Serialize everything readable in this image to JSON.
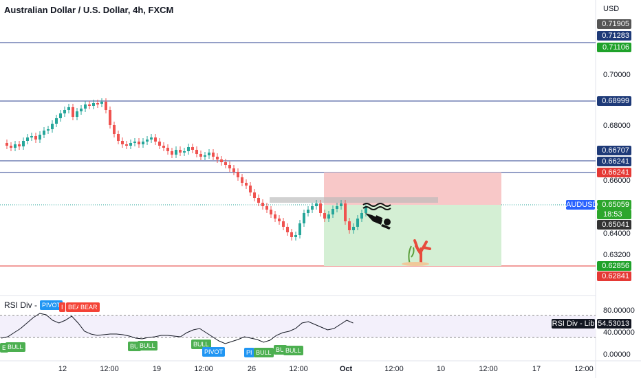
{
  "title": "Australian Dollar / U.S. Dollar, 4h, FXCM",
  "currency": "USD",
  "symbol": "AUDUSD",
  "price_axis": {
    "ticks": [
      "0.70000",
      "0.68000",
      "0.66000",
      "0.64000",
      "0.63200"
    ],
    "tags": [
      {
        "text": "0.71905",
        "color": "#555555"
      },
      {
        "text": "0.71283",
        "color": "#1e3a78"
      },
      {
        "text": "0.71106",
        "color": "#1fa22a"
      },
      {
        "text": "0.68999",
        "color": "#1e3a78"
      },
      {
        "text": "0.66707",
        "color": "#1e3a78"
      },
      {
        "text": "0.66241",
        "color": "#1e3a78"
      },
      {
        "text": "0.66241",
        "color": "#e53935"
      },
      {
        "text": "0.65059",
        "color": "#2ca62c"
      },
      {
        "text": "18:53",
        "color": "#2ca62c"
      },
      {
        "text": "0.65041",
        "color": "#333333"
      },
      {
        "text": "0.62856",
        "color": "#1fa22a"
      },
      {
        "text": "0.62841",
        "color": "#e53935"
      }
    ]
  },
  "rsi": {
    "title": "RSI Div - Lib",
    "tag_label": "RSI Div - Lib",
    "value": "54.53013",
    "ticks": [
      "80.00000",
      "40.00000",
      "0.00000"
    ],
    "badges": [
      {
        "text": "PIVOT",
        "color": "blue"
      },
      {
        "text": "I",
        "color": "red"
      },
      {
        "text": "BEA",
        "color": "red"
      },
      {
        "text": "BEAR",
        "color": "red"
      },
      {
        "text": "E",
        "color": "green"
      },
      {
        "text": "BULL",
        "color": "green"
      },
      {
        "text": "BU",
        "color": "green"
      },
      {
        "text": "BULL",
        "color": "green"
      },
      {
        "text": "BULL",
        "color": "green"
      },
      {
        "text": "PIVOT",
        "color": "blue"
      },
      {
        "text": "PI",
        "color": "blue"
      },
      {
        "text": "BULL",
        "color": "green"
      },
      {
        "text": "BU",
        "color": "green"
      },
      {
        "text": "BULL",
        "color": "green"
      }
    ]
  },
  "time_axis": [
    "12",
    "12:00",
    "19",
    "12:00",
    "26",
    "12:00",
    "Oct",
    "12:00",
    "10",
    "12:00",
    "17",
    "12:00"
  ],
  "colors": {
    "up": "#26a69a",
    "down": "#ef5350",
    "hline": "#2a3f8f",
    "stop_zone": "#f8c8c8",
    "target_zone": "#d4efd4"
  },
  "icons": [
    "diver-icon",
    "wave-icon",
    "coral-icon"
  ]
}
